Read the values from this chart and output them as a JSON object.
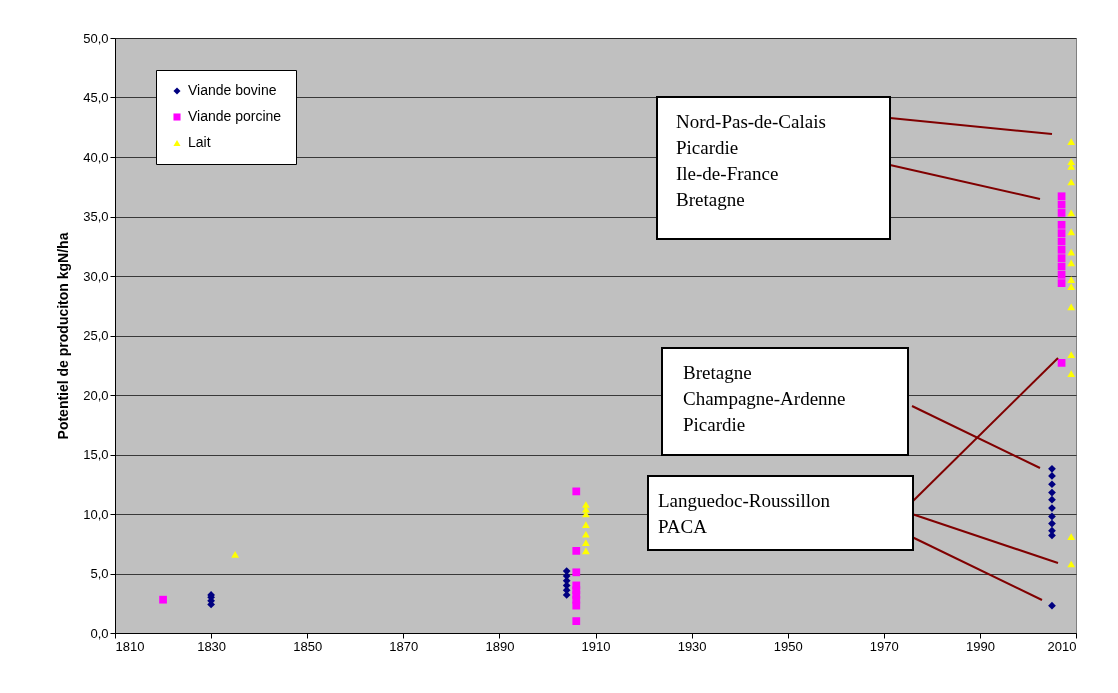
{
  "chart_data": {
    "type": "scatter",
    "ylabel": "Potentiel de produciton kgN/ha",
    "xlim": [
      1810,
      2010
    ],
    "xticks": [
      1810,
      1830,
      1850,
      1870,
      1890,
      1910,
      1930,
      1950,
      1970,
      1990,
      2010
    ],
    "ylim": [
      0,
      50
    ],
    "yticks": [
      {
        "value": 0,
        "label": "0,0"
      },
      {
        "value": 5,
        "label": "5,0"
      },
      {
        "value": 10,
        "label": "10,0"
      },
      {
        "value": 15,
        "label": "15,0"
      },
      {
        "value": 20,
        "label": "20,0"
      },
      {
        "value": 25,
        "label": "25,0"
      },
      {
        "value": 30,
        "label": "30,0"
      },
      {
        "value": 35,
        "label": "35,0"
      },
      {
        "value": 40,
        "label": "40,0"
      },
      {
        "value": 45,
        "label": "45,0"
      },
      {
        "value": 50,
        "label": "50,0"
      }
    ],
    "grid": "y",
    "legend": "top left",
    "series": [
      {
        "name": "Viande bovine",
        "color": "#000080",
        "marker": "diamond",
        "x": [
          1830,
          1830,
          1830,
          1830,
          1904,
          1904,
          1904,
          1904,
          1904,
          1904,
          2005,
          2005,
          2005,
          2005,
          2005,
          2005,
          2005,
          2005,
          2005,
          2005,
          2005
        ],
        "values": [
          2.4,
          2.7,
          3.0,
          3.2,
          3.2,
          3.6,
          4.0,
          4.4,
          4.8,
          5.2,
          13.8,
          13.2,
          12.5,
          11.8,
          11.2,
          10.5,
          9.8,
          9.2,
          8.6,
          8.2,
          2.3
        ]
      },
      {
        "name": "Viande porcine",
        "color": "#ff00ff",
        "marker": "square",
        "x": [
          1820,
          1906,
          1906,
          1906,
          1906,
          1906,
          1906,
          1906,
          1906,
          1906,
          2007,
          2007,
          2007,
          2007,
          2007,
          2007,
          2007,
          2007,
          2007,
          2007,
          2007,
          2007
        ],
        "values": [
          2.8,
          11.9,
          6.9,
          5.1,
          4.0,
          3.6,
          3.2,
          2.8,
          2.3,
          1.0,
          36.7,
          36.0,
          35.3,
          34.3,
          33.6,
          32.9,
          32.2,
          31.5,
          30.8,
          30.1,
          29.4,
          22.7
        ]
      },
      {
        "name": "Lait",
        "color": "#ffff00",
        "marker": "triangle",
        "x": [
          1835,
          1908,
          1908,
          1908,
          1908,
          1908,
          1908,
          1908,
          2009,
          2009,
          2009,
          2009,
          2009,
          2009,
          2009,
          2009,
          2009,
          2009,
          2009,
          2009,
          2009,
          2009,
          2009
        ],
        "values": [
          6.6,
          10.8,
          10.4,
          10.0,
          9.1,
          8.3,
          7.6,
          6.9,
          41.3,
          39.6,
          39.2,
          37.9,
          35.3,
          33.7,
          32.0,
          31.1,
          29.7,
          29.1,
          27.4,
          23.4,
          21.8,
          8.1,
          5.8
        ]
      }
    ],
    "annotations": [
      "Nord-Pas-de-Calais\nPicardie\nIle-de-France\nBretagne",
      "Bretagne\nChampagne-Ardenne\nPicardie",
      "Languedoc-Roussillon\nPACA"
    ]
  }
}
